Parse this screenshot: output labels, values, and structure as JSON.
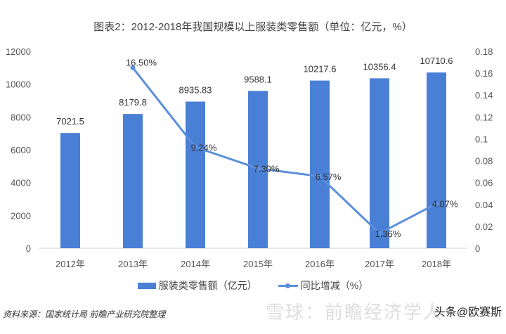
{
  "chart_data": {
    "type": "bar+line",
    "title": "图表2：2012-2018年我国规模以上服装类零售额（单位：亿元，%）",
    "categories": [
      "2012年",
      "2013年",
      "2014年",
      "2015年",
      "2016年",
      "2017年",
      "2018年"
    ],
    "series": [
      {
        "name": "服装类零售额（亿元）",
        "type": "bar",
        "axis": "left",
        "values": [
          7021.5,
          8179.8,
          8935.83,
          9588.1,
          10217.6,
          10356.4,
          10710.6
        ],
        "labels": [
          "7021.5",
          "8179.8",
          "8935.83",
          "9588.1",
          "10217.6",
          "10356.4",
          "10710.6"
        ],
        "color": "#4a7fd6"
      },
      {
        "name": "同比增减（%）",
        "type": "line",
        "axis": "right",
        "values": [
          null,
          0.165,
          0.0924,
          0.073,
          0.0657,
          0.0136,
          0.0407
        ],
        "labels": [
          "",
          "16.50%",
          "9.24%",
          "7.30%",
          "6.57%",
          "1.36%",
          "4.07%"
        ],
        "color": "#5b8fdc"
      }
    ],
    "y_left": {
      "range": [
        0,
        12000
      ],
      "ticks": [
        "0",
        "2000",
        "4000",
        "6000",
        "8000",
        "10000",
        "12000"
      ]
    },
    "y_right": {
      "range": [
        0,
        0.18
      ],
      "ticks": [
        "0",
        "0.02",
        "0.04",
        "0.06",
        "0.08",
        "0.1",
        "0.12",
        "0.14",
        "0.16",
        "0.18"
      ]
    },
    "grid": false,
    "legend": "bottom"
  },
  "source": "资料来源：国家统计局 前瞻产业研究院整理",
  "watermark": "头条@欧赛斯",
  "watermark2": "雪球：前瞻经济学人"
}
